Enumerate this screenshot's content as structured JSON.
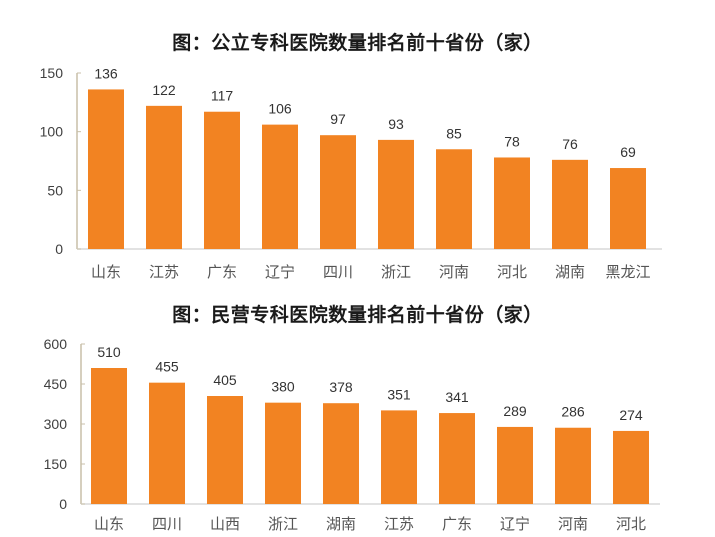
{
  "colors": {
    "bar": "#F28322",
    "axis": "#C8BFA8",
    "baseline": "#D9D9D9"
  },
  "chart_data": [
    {
      "type": "bar",
      "title": "图：公立专科医院数量排名前十省份（家）",
      "xlabel": "",
      "ylabel": "",
      "categories": [
        "山东",
        "江苏",
        "广东",
        "辽宁",
        "四川",
        "浙江",
        "河南",
        "河北",
        "湖南",
        "黑龙江"
      ],
      "values": [
        136,
        122,
        117,
        106,
        97,
        93,
        85,
        78,
        76,
        69
      ],
      "ylim": [
        0,
        150
      ],
      "yticks": [
        0,
        50,
        100,
        150
      ],
      "grid": false,
      "legend": "none",
      "data_labels": true
    },
    {
      "type": "bar",
      "title": "图：民营专科医院数量排名前十省份（家）",
      "xlabel": "",
      "ylabel": "",
      "categories": [
        "山东",
        "四川",
        "山西",
        "浙江",
        "湖南",
        "江苏",
        "广东",
        "辽宁",
        "河南",
        "河北"
      ],
      "values": [
        510,
        455,
        405,
        380,
        378,
        351,
        341,
        289,
        286,
        274
      ],
      "ylim": [
        0,
        600
      ],
      "yticks": [
        0,
        150,
        300,
        450,
        600
      ],
      "grid": false,
      "legend": "none",
      "data_labels": true
    }
  ]
}
